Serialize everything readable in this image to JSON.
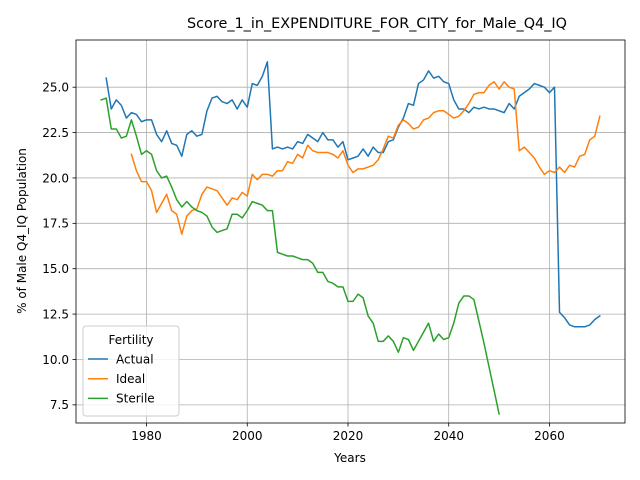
{
  "chart_data": {
    "type": "line",
    "title": "Score_1_in_EXPENDITURE_FOR_CITY_for_Male_Q4_IQ",
    "xlabel": "Years",
    "ylabel": "% of Male Q4_IQ Population",
    "xlim": [
      1966,
      2075
    ],
    "ylim": [
      6.5,
      27.6
    ],
    "xticks": [
      1980,
      2000,
      2020,
      2040,
      2060
    ],
    "yticks": [
      7.5,
      10.0,
      12.5,
      15.0,
      17.5,
      20.0,
      22.5,
      25.0
    ],
    "grid": true,
    "legend": {
      "title": "Fertility",
      "position": "lower-left"
    },
    "series": [
      {
        "name": "Actual",
        "color": "#1f77b4",
        "x": [
          1972,
          1973,
          1974,
          1975,
          1976,
          1977,
          1978,
          1979,
          1980,
          1981,
          1982,
          1983,
          1984,
          1985,
          1986,
          1987,
          1988,
          1989,
          1990,
          1991,
          1992,
          1993,
          1994,
          1995,
          1996,
          1997,
          1998,
          1999,
          2000,
          2001,
          2002,
          2003,
          2004,
          2005,
          2006,
          2007,
          2008,
          2009,
          2010,
          2011,
          2012,
          2013,
          2014,
          2015,
          2016,
          2017,
          2018,
          2019,
          2020,
          2021,
          2022,
          2023,
          2024,
          2025,
          2026,
          2027,
          2028,
          2029,
          2030,
          2031,
          2032,
          2033,
          2034,
          2035,
          2036,
          2037,
          2038,
          2039,
          2040,
          2041,
          2042,
          2043,
          2044,
          2045,
          2046,
          2047,
          2048,
          2049,
          2050,
          2051,
          2052,
          2053,
          2054,
          2055,
          2056,
          2057,
          2058,
          2059,
          2060,
          2061,
          2062,
          2063,
          2064,
          2065,
          2066,
          2067,
          2068,
          2069,
          2070
        ],
        "y": [
          25.5,
          23.8,
          24.3,
          24.0,
          23.3,
          23.6,
          23.5,
          23.1,
          23.2,
          23.2,
          22.4,
          22.0,
          22.6,
          21.9,
          21.8,
          21.2,
          22.4,
          22.6,
          22.3,
          22.4,
          23.7,
          24.4,
          24.5,
          24.2,
          24.1,
          24.3,
          23.8,
          24.3,
          23.9,
          25.2,
          25.1,
          25.6,
          26.4,
          21.6,
          21.7,
          21.6,
          21.7,
          21.6,
          22.0,
          21.9,
          22.4,
          22.2,
          22.0,
          22.5,
          22.1,
          22.1,
          21.7,
          22.0,
          21.0,
          21.1,
          21.2,
          21.6,
          21.2,
          21.7,
          21.4,
          21.4,
          22.0,
          22.1,
          22.8,
          23.3,
          24.1,
          24.0,
          25.2,
          25.4,
          25.9,
          25.5,
          25.6,
          25.3,
          25.2,
          24.3,
          23.8,
          23.8,
          23.6,
          23.9,
          23.8,
          23.9,
          23.8,
          23.8,
          23.7,
          23.6,
          24.1,
          23.8,
          24.5,
          24.7,
          24.9,
          25.2,
          25.1,
          25.0,
          24.7,
          25.0,
          12.6,
          12.3,
          11.9,
          11.8,
          11.8,
          11.8,
          11.9,
          12.2,
          12.4
        ]
      },
      {
        "name": "Ideal",
        "color": "#ff7f0e",
        "x": [
          1977,
          1978,
          1979,
          1980,
          1981,
          1982,
          1983,
          1984,
          1985,
          1986,
          1987,
          1988,
          1989,
          1990,
          1991,
          1992,
          1993,
          1994,
          1995,
          1996,
          1997,
          1998,
          1999,
          2000,
          2001,
          2002,
          2003,
          2004,
          2005,
          2006,
          2007,
          2008,
          2009,
          2010,
          2011,
          2012,
          2013,
          2014,
          2015,
          2016,
          2017,
          2018,
          2019,
          2020,
          2021,
          2022,
          2023,
          2024,
          2025,
          2026,
          2027,
          2028,
          2029,
          2030,
          2031,
          2032,
          2033,
          2034,
          2035,
          2036,
          2037,
          2038,
          2039,
          2040,
          2041,
          2042,
          2043,
          2044,
          2045,
          2046,
          2047,
          2048,
          2049,
          2050,
          2051,
          2052,
          2053,
          2054,
          2055,
          2056,
          2057,
          2058,
          2059,
          2060,
          2061,
          2062,
          2063,
          2064,
          2065,
          2066,
          2067,
          2068,
          2069,
          2070
        ],
        "y": [
          21.3,
          20.4,
          19.8,
          19.8,
          19.3,
          18.1,
          18.6,
          19.1,
          18.2,
          18.0,
          16.9,
          17.9,
          18.2,
          18.3,
          19.1,
          19.5,
          19.4,
          19.3,
          18.9,
          18.5,
          18.9,
          18.8,
          19.2,
          19.0,
          20.2,
          19.9,
          20.2,
          20.2,
          20.1,
          20.4,
          20.4,
          20.9,
          20.8,
          21.3,
          21.1,
          21.8,
          21.5,
          21.4,
          21.4,
          21.4,
          21.3,
          21.1,
          21.5,
          20.7,
          20.3,
          20.5,
          20.5,
          20.6,
          20.7,
          21.0,
          21.6,
          22.3,
          22.2,
          22.9,
          23.2,
          23.0,
          22.7,
          22.8,
          23.2,
          23.3,
          23.6,
          23.7,
          23.7,
          23.5,
          23.3,
          23.4,
          23.7,
          24.1,
          24.6,
          24.7,
          24.7,
          25.1,
          25.3,
          24.9,
          25.3,
          25.0,
          24.9,
          21.5,
          21.7,
          21.4,
          21.1,
          20.6,
          20.2,
          20.4,
          20.3,
          20.6,
          20.3,
          20.7,
          20.6,
          21.2,
          21.3,
          22.1,
          22.3,
          23.4
        ]
      },
      {
        "name": "Sterile",
        "color": "#2ca02c",
        "x": [
          1971,
          1972,
          1973,
          1974,
          1975,
          1976,
          1977,
          1978,
          1979,
          1980,
          1981,
          1982,
          1983,
          1984,
          1985,
          1986,
          1987,
          1988,
          1989,
          1990,
          1991,
          1992,
          1993,
          1994,
          1995,
          1996,
          1997,
          1998,
          1999,
          2000,
          2001,
          2002,
          2003,
          2004,
          2005,
          2006,
          2007,
          2008,
          2009,
          2010,
          2011,
          2012,
          2013,
          2014,
          2015,
          2016,
          2017,
          2018,
          2019,
          2020,
          2021,
          2022,
          2023,
          2024,
          2025,
          2026,
          2027,
          2028,
          2029,
          2030,
          2031,
          2032,
          2033,
          2034,
          2035,
          2036,
          2037,
          2038,
          2039,
          2040,
          2041,
          2042,
          2043,
          2044,
          2045,
          2046,
          2047,
          2048,
          2049,
          2050
        ],
        "y": [
          24.3,
          24.4,
          22.7,
          22.7,
          22.2,
          22.3,
          23.2,
          22.3,
          21.3,
          21.5,
          21.3,
          20.4,
          20.0,
          20.1,
          19.5,
          18.8,
          18.4,
          18.7,
          18.4,
          18.2,
          18.1,
          17.9,
          17.3,
          17.0,
          17.1,
          17.2,
          18.0,
          18.0,
          17.8,
          18.2,
          18.7,
          18.6,
          18.5,
          18.2,
          18.2,
          15.9,
          15.8,
          15.7,
          15.7,
          15.6,
          15.5,
          15.5,
          15.3,
          14.8,
          14.8,
          14.3,
          14.2,
          14.0,
          14.0,
          13.2,
          13.2,
          13.6,
          13.4,
          12.4,
          12.0,
          11.0,
          11.0,
          11.3,
          11.0,
          10.4,
          11.2,
          11.1,
          10.5,
          11.0,
          11.5,
          12.0,
          11.0,
          11.4,
          11.1,
          11.2,
          12.0,
          13.1,
          13.5,
          13.5,
          13.3,
          12.1,
          10.9,
          9.6,
          8.3,
          7.0
        ]
      }
    ]
  }
}
